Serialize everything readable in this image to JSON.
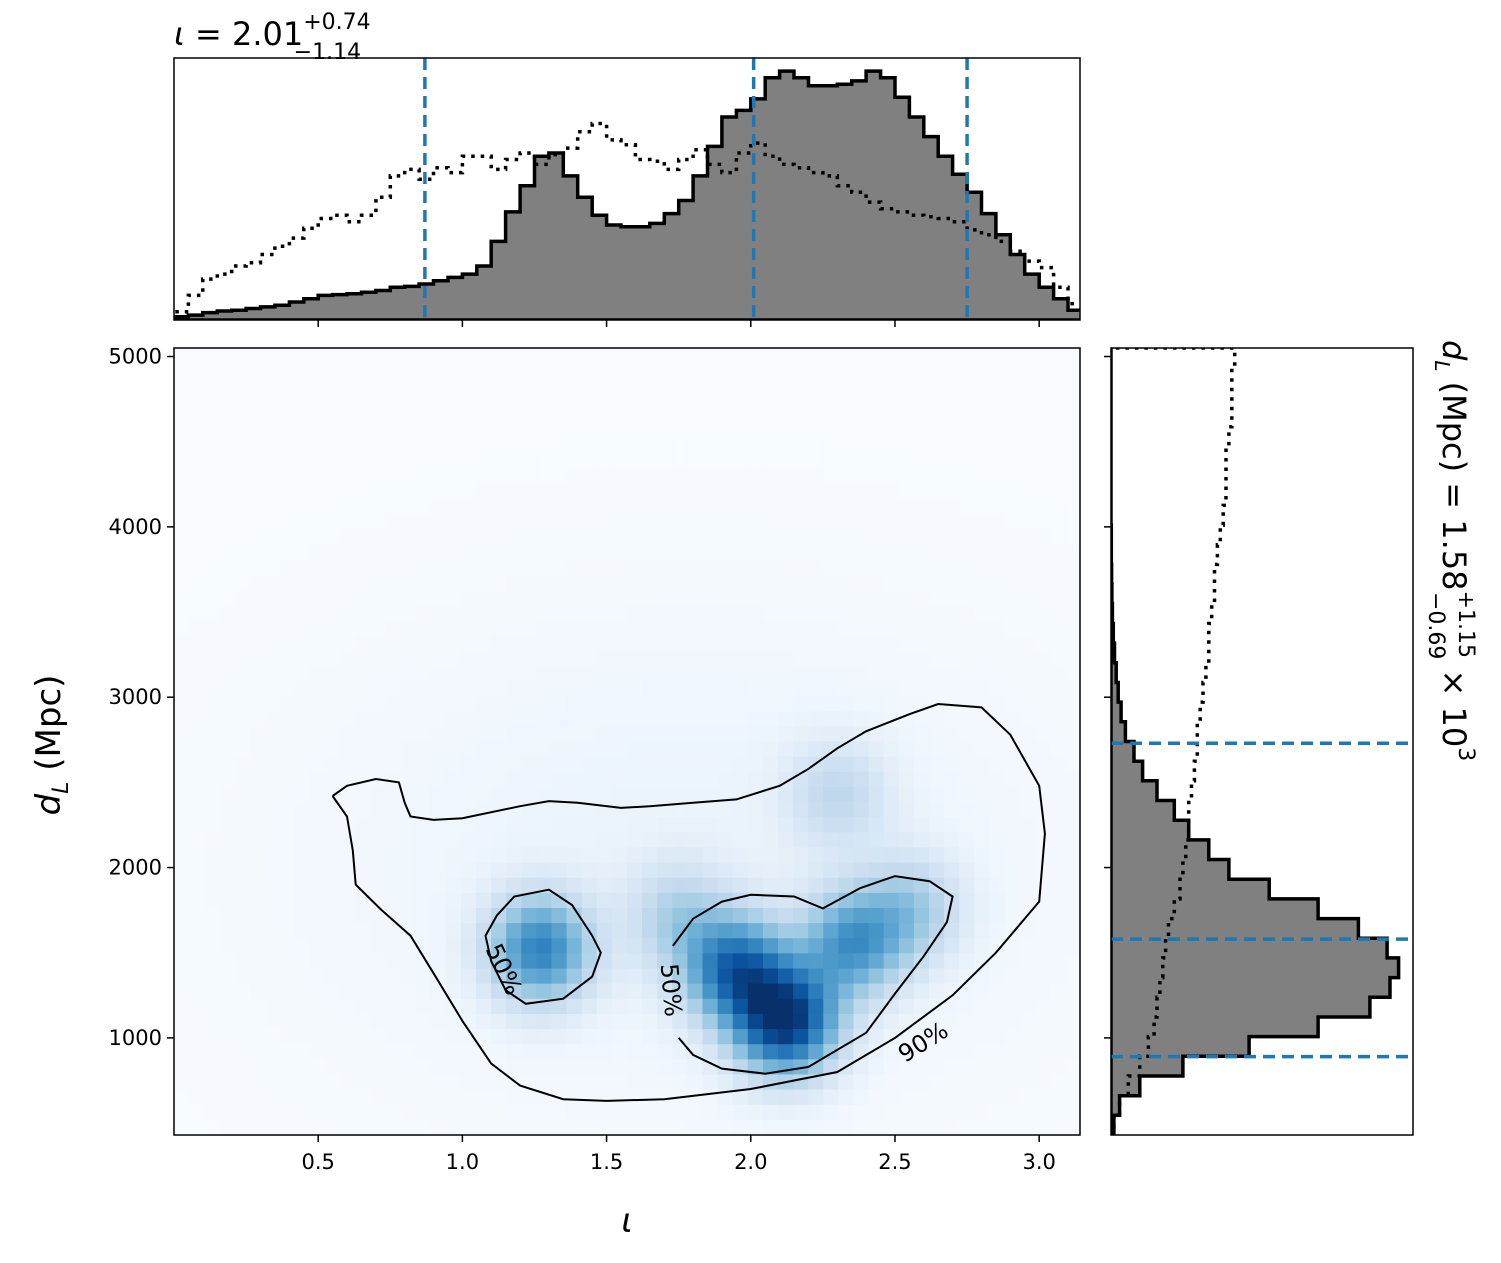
{
  "chart_data": [
    {
      "type": "heatmap",
      "panel": "joint",
      "xlabel": "ι",
      "ylabel_main": "d",
      "ylabel_sub": "L",
      "ylabel_unit": " (Mpc)",
      "xlim": [
        0.0,
        3.1416
      ],
      "ylim": [
        430,
        5050
      ],
      "xticks": [
        0.5,
        1.0,
        1.5,
        2.0,
        2.5,
        3.0
      ],
      "xtick_labels": [
        "0.5",
        "1.0",
        "1.5",
        "2.0",
        "2.5",
        "3.0"
      ],
      "yticks": [
        1000,
        2000,
        3000,
        4000,
        5000
      ],
      "ytick_labels": [
        "1000",
        "2000",
        "3000",
        "4000",
        "5000"
      ],
      "colormap": "Blues",
      "density_peaks": [
        {
          "x": 2.12,
          "y": 1100,
          "weight": 1.0
        },
        {
          "x": 1.95,
          "y": 1400,
          "weight": 0.75
        },
        {
          "x": 2.35,
          "y": 1550,
          "weight": 0.55
        },
        {
          "x": 1.27,
          "y": 1520,
          "weight": 0.65
        },
        {
          "x": 2.55,
          "y": 1750,
          "weight": 0.3
        },
        {
          "x": 2.3,
          "y": 2430,
          "weight": 0.2
        },
        {
          "x": 1.75,
          "y": 1700,
          "weight": 0.25
        }
      ],
      "contours": [
        {
          "label": "90%",
          "points": [
            [
              0.55,
              2420
            ],
            [
              0.6,
              2480
            ],
            [
              0.7,
              2520
            ],
            [
              0.78,
              2500
            ],
            [
              0.8,
              2380
            ],
            [
              0.82,
              2300
            ],
            [
              0.9,
              2280
            ],
            [
              1.0,
              2290
            ],
            [
              1.2,
              2360
            ],
            [
              1.3,
              2390
            ],
            [
              1.4,
              2380
            ],
            [
              1.55,
              2350
            ],
            [
              1.65,
              2360
            ],
            [
              1.8,
              2380
            ],
            [
              1.95,
              2400
            ],
            [
              2.1,
              2480
            ],
            [
              2.2,
              2580
            ],
            [
              2.3,
              2700
            ],
            [
              2.4,
              2800
            ],
            [
              2.55,
              2900
            ],
            [
              2.65,
              2960
            ],
            [
              2.8,
              2940
            ],
            [
              2.9,
              2780
            ],
            [
              3.0,
              2480
            ],
            [
              3.02,
              2200
            ],
            [
              3.0,
              1800
            ],
            [
              2.85,
              1500
            ],
            [
              2.7,
              1250
            ],
            [
              2.5,
              1000
            ],
            [
              2.3,
              800
            ],
            [
              2.0,
              700
            ],
            [
              1.7,
              640
            ],
            [
              1.5,
              630
            ],
            [
              1.35,
              640
            ],
            [
              1.2,
              720
            ],
            [
              1.1,
              850
            ],
            [
              1.0,
              1100
            ],
            [
              0.9,
              1380
            ],
            [
              0.82,
              1600
            ],
            [
              0.72,
              1750
            ],
            [
              0.63,
              1900
            ],
            [
              0.62,
              2100
            ],
            [
              0.6,
              2300
            ],
            [
              0.55,
              2420
            ]
          ]
        },
        {
          "label": "50%",
          "points": [
            [
              1.12,
              1720
            ],
            [
              1.18,
              1830
            ],
            [
              1.3,
              1870
            ],
            [
              1.38,
              1780
            ],
            [
              1.45,
              1600
            ],
            [
              1.48,
              1500
            ],
            [
              1.45,
              1360
            ],
            [
              1.35,
              1230
            ],
            [
              1.22,
              1200
            ],
            [
              1.15,
              1280
            ],
            [
              1.1,
              1450
            ],
            [
              1.08,
              1600
            ],
            [
              1.12,
              1720
            ]
          ]
        },
        {
          "label": "50%",
          "points": [
            [
              1.73,
              1540
            ],
            [
              1.8,
              1700
            ],
            [
              1.9,
              1800
            ],
            [
              2.0,
              1840
            ],
            [
              2.15,
              1830
            ],
            [
              2.25,
              1760
            ],
            [
              2.38,
              1880
            ],
            [
              2.5,
              1950
            ],
            [
              2.62,
              1920
            ],
            [
              2.7,
              1830
            ],
            [
              2.68,
              1680
            ],
            [
              2.6,
              1480
            ],
            [
              2.5,
              1260
            ],
            [
              2.4,
              1030
            ],
            [
              2.2,
              830
            ],
            [
              2.05,
              790
            ],
            [
              1.9,
              820
            ],
            [
              1.8,
              900
            ],
            [
              1.75,
              1000
            ]
          ]
        }
      ]
    },
    {
      "type": "histogram",
      "panel": "top-marginal",
      "title_symbol": "ι",
      "title_value": " = 2.01",
      "title_sup": "+0.74",
      "title_sub": "−1.14",
      "bin_start": 0.0,
      "bin_width": 0.05,
      "posterior": [
        0.02,
        0.03,
        0.045,
        0.055,
        0.06,
        0.07,
        0.08,
        0.09,
        0.11,
        0.13,
        0.15,
        0.155,
        0.16,
        0.17,
        0.18,
        0.2,
        0.205,
        0.22,
        0.24,
        0.26,
        0.28,
        0.33,
        0.48,
        0.66,
        0.82,
        1.0,
        1.02,
        0.88,
        0.75,
        0.64,
        0.58,
        0.57,
        0.57,
        0.59,
        0.65,
        0.73,
        0.88,
        1.06,
        1.24,
        1.28,
        1.35,
        1.48,
        1.52,
        1.48,
        1.43,
        1.43,
        1.44,
        1.46,
        1.52,
        1.48,
        1.36,
        1.24,
        1.12,
        1.0,
        0.89,
        0.78,
        0.65,
        0.52,
        0.4,
        0.28,
        0.2,
        0.13,
        0.06
      ],
      "prior": [
        0.05,
        0.15,
        0.25,
        0.28,
        0.33,
        0.35,
        0.4,
        0.45,
        0.5,
        0.56,
        0.62,
        0.64,
        0.6,
        0.64,
        0.75,
        0.88,
        0.92,
        0.86,
        0.93,
        0.9,
        1.0,
        1.0,
        0.92,
        0.98,
        1.02,
        0.95,
        1.01,
        1.05,
        1.15,
        1.2,
        1.1,
        1.07,
        0.98,
        0.97,
        0.92,
        0.98,
        1.04,
        0.95,
        0.9,
        1.02,
        1.08,
        1.0,
        0.95,
        0.93,
        0.9,
        0.88,
        0.82,
        0.78,
        0.72,
        0.68,
        0.66,
        0.64,
        0.63,
        0.62,
        0.6,
        0.55,
        0.52,
        0.48,
        0.42,
        0.36,
        0.32,
        0.2,
        0.1
      ],
      "quantile_lines": [
        0.87,
        2.01,
        2.75
      ],
      "ylim": [
        0,
        1.6
      ]
    },
    {
      "type": "histogram",
      "panel": "right-marginal",
      "orientation": "horizontal",
      "ylabel_main": "d",
      "ylabel_sub": "L",
      "ylabel_mid": " (Mpc) = 1.58",
      "ylabel_sup": "+1.15",
      "ylabel_sub2": "−0.69",
      "ylabel_tail": " × 10",
      "ylabel_exp": "3",
      "bin_start": 430,
      "bin_width": 115.5,
      "posterior": [
        0.01,
        0.03,
        0.1,
        0.25,
        0.48,
        0.72,
        0.9,
        0.97,
        1.0,
        0.96,
        0.86,
        0.72,
        0.55,
        0.41,
        0.34,
        0.27,
        0.22,
        0.16,
        0.11,
        0.08,
        0.05,
        0.035,
        0.025,
        0.018,
        0.012,
        0.008,
        0.005,
        0.003,
        0.002,
        0.001,
        0.001,
        0.0,
        0.0,
        0.0,
        0.0,
        0.0,
        0.0,
        0.0,
        0.0,
        0.0
      ],
      "prior": [
        0.01,
        0.03,
        0.06,
        0.1,
        0.13,
        0.15,
        0.16,
        0.17,
        0.18,
        0.19,
        0.2,
        0.22,
        0.24,
        0.25,
        0.26,
        0.27,
        0.27,
        0.28,
        0.29,
        0.3,
        0.3,
        0.31,
        0.32,
        0.33,
        0.34,
        0.34,
        0.35,
        0.36,
        0.36,
        0.37,
        0.38,
        0.39,
        0.4,
        0.4,
        0.4,
        0.41,
        0.42,
        0.42,
        0.42,
        0.43
      ],
      "quantile_lines": [
        890,
        1580,
        2730
      ],
      "xlim": [
        0,
        1.05
      ]
    }
  ]
}
